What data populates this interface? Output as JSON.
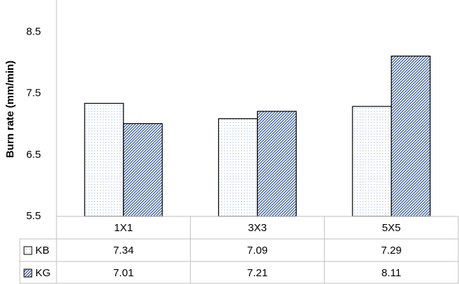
{
  "chart_data": {
    "type": "bar",
    "y_label": "Burn rate (mm/min)",
    "categories": [
      "1X1",
      "3X3",
      "5X5"
    ],
    "series": [
      {
        "name": "KB",
        "color": "#8faadc",
        "values": [
          7.34,
          7.09,
          7.29
        ]
      },
      {
        "name": "KG",
        "color": "#2f5597",
        "values": [
          7.01,
          7.21,
          8.11
        ]
      }
    ],
    "ylim": [
      5.5,
      9
    ],
    "yticks": [
      5.5,
      6.5,
      7.5,
      8.5
    ],
    "grid": false
  }
}
